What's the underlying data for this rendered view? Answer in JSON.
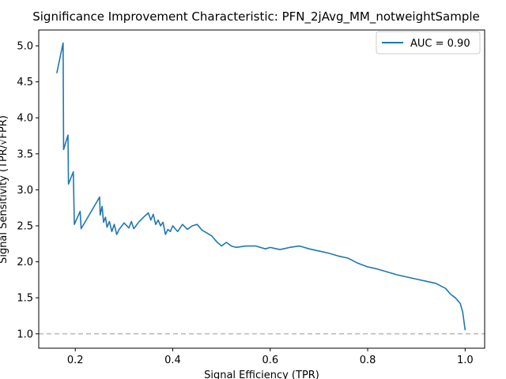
{
  "chart_data": {
    "type": "line",
    "title": "Significance Improvement Characteristic:  PFN_2jAvg_MM_notweightSample",
    "xlabel": "Signal Efficiency (TPR)",
    "ylabel": "Signal Sensitivity (TPR/√FPR)",
    "xlim": [
      0.125,
      1.04
    ],
    "ylim": [
      0.8,
      5.22
    ],
    "x_ticks": [
      0.2,
      0.4,
      0.6,
      0.8,
      1.0
    ],
    "x_tick_labels": [
      "0.2",
      "0.4",
      "0.6",
      "0.8",
      "1.0"
    ],
    "y_ticks": [
      1.0,
      1.5,
      2.0,
      2.5,
      3.0,
      3.5,
      4.0,
      4.5,
      5.0
    ],
    "y_tick_labels": [
      "1.0",
      "1.5",
      "2.0",
      "2.5",
      "3.0",
      "3.5",
      "4.0",
      "4.5",
      "5.0"
    ],
    "grid": false,
    "legend_position": "top-right",
    "reference_line": {
      "y": 1.0,
      "style": "dashed",
      "color": "#bbbbbb"
    },
    "series": [
      {
        "name": "AUC = 0.90",
        "color": "#1f77b4",
        "x": [
          0.162,
          0.175,
          0.176,
          0.185,
          0.186,
          0.196,
          0.198,
          0.21,
          0.212,
          0.25,
          0.251,
          0.255,
          0.258,
          0.262,
          0.265,
          0.27,
          0.275,
          0.28,
          0.285,
          0.29,
          0.3,
          0.31,
          0.315,
          0.32,
          0.33,
          0.34,
          0.35,
          0.355,
          0.36,
          0.365,
          0.37,
          0.375,
          0.38,
          0.385,
          0.39,
          0.395,
          0.4,
          0.41,
          0.42,
          0.43,
          0.44,
          0.45,
          0.46,
          0.47,
          0.48,
          0.49,
          0.5,
          0.51,
          0.52,
          0.53,
          0.55,
          0.57,
          0.59,
          0.6,
          0.62,
          0.64,
          0.66,
          0.68,
          0.7,
          0.72,
          0.74,
          0.76,
          0.78,
          0.8,
          0.82,
          0.84,
          0.86,
          0.88,
          0.9,
          0.92,
          0.94,
          0.96,
          0.97,
          0.98,
          0.99,
          0.995,
          1.0
        ],
        "y": [
          4.62,
          5.04,
          3.56,
          3.76,
          3.08,
          3.25,
          2.52,
          2.7,
          2.46,
          2.9,
          2.65,
          2.77,
          2.55,
          2.62,
          2.48,
          2.56,
          2.42,
          2.52,
          2.38,
          2.45,
          2.54,
          2.47,
          2.56,
          2.46,
          2.55,
          2.62,
          2.68,
          2.58,
          2.66,
          2.52,
          2.58,
          2.5,
          2.55,
          2.38,
          2.45,
          2.42,
          2.5,
          2.42,
          2.52,
          2.45,
          2.5,
          2.52,
          2.44,
          2.4,
          2.36,
          2.28,
          2.22,
          2.27,
          2.22,
          2.2,
          2.22,
          2.22,
          2.18,
          2.2,
          2.17,
          2.2,
          2.22,
          2.18,
          2.15,
          2.12,
          2.08,
          2.05,
          1.98,
          1.93,
          1.9,
          1.86,
          1.82,
          1.79,
          1.76,
          1.73,
          1.7,
          1.63,
          1.55,
          1.5,
          1.42,
          1.3,
          1.05
        ]
      }
    ]
  }
}
